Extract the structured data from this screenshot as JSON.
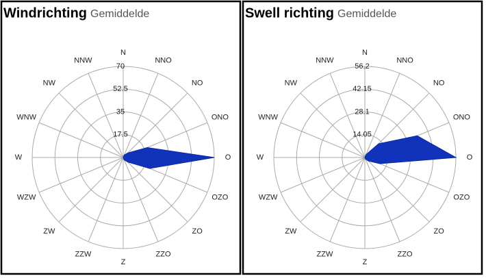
{
  "chart_data": [
    {
      "type": "radar",
      "title": "Windrichting",
      "subtitle": "Gemiddelde",
      "categories": [
        "N",
        "NNO",
        "NO",
        "ONO",
        "O",
        "OZO",
        "ZO",
        "ZZO",
        "Z",
        "ZZW",
        "ZW",
        "WZW",
        "W",
        "WNW",
        "NW",
        "NNW"
      ],
      "values": [
        0,
        2,
        5,
        20,
        70,
        22,
        5,
        2,
        0,
        0,
        0,
        0,
        0,
        0,
        0,
        0
      ],
      "color": "#1133bb",
      "ylim": [
        0,
        70
      ],
      "yticks": [
        17.5,
        35,
        52.5,
        70
      ]
    },
    {
      "type": "radar",
      "title": "Swell richting",
      "subtitle": "Gemiddelde",
      "categories": [
        "N",
        "NNO",
        "NO",
        "ONO",
        "O",
        "OZO",
        "ZO",
        "ZZO",
        "Z",
        "ZZW",
        "ZW",
        "WZW",
        "W",
        "WNW",
        "NW",
        "NNW"
      ],
      "values": [
        0,
        2,
        12,
        35,
        56.2,
        10,
        3,
        1,
        0,
        0,
        0,
        0,
        0,
        0,
        0,
        0
      ],
      "color": "#1133bb",
      "ylim": [
        0,
        56.2
      ],
      "yticks": [
        14.05,
        28.1,
        42.15,
        56.2
      ]
    }
  ]
}
